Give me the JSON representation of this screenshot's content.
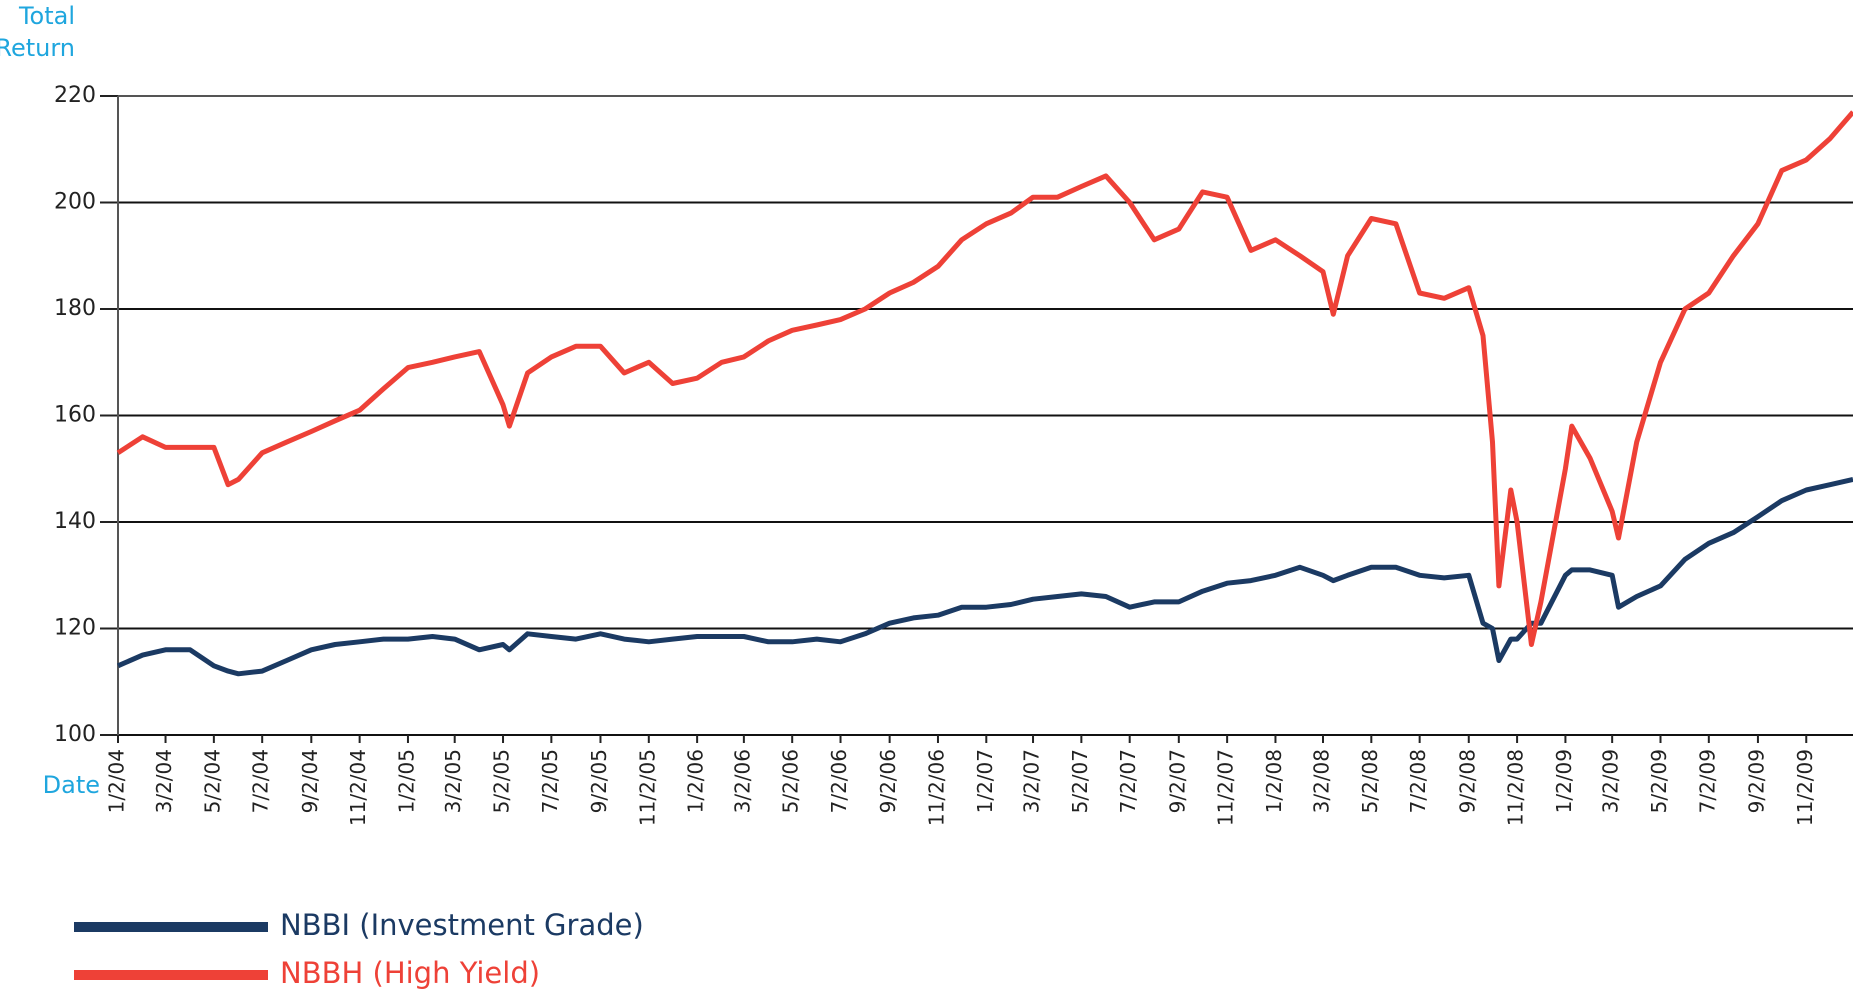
{
  "chart_data": {
    "type": "line",
    "y_axis_label_lines": [
      "Total",
      "Return"
    ],
    "x_axis_label": "Date",
    "x": [
      "2004-01-02",
      "2004-02-02",
      "2004-03-02",
      "2004-04-02",
      "2004-05-02",
      "2004-05-20",
      "2004-06-02",
      "2004-07-02",
      "2004-08-02",
      "2004-09-02",
      "2004-10-02",
      "2004-11-02",
      "2004-12-02",
      "2005-01-02",
      "2005-02-02",
      "2005-03-02",
      "2005-04-02",
      "2005-05-02",
      "2005-05-10",
      "2005-06-02",
      "2005-07-02",
      "2005-08-02",
      "2005-09-02",
      "2005-10-02",
      "2005-11-02",
      "2005-12-02",
      "2006-01-02",
      "2006-02-02",
      "2006-03-02",
      "2006-04-02",
      "2006-05-02",
      "2006-06-02",
      "2006-07-02",
      "2006-08-02",
      "2006-09-02",
      "2006-10-02",
      "2006-11-02",
      "2006-12-02",
      "2007-01-02",
      "2007-02-02",
      "2007-03-02",
      "2007-04-02",
      "2007-05-02",
      "2007-06-02",
      "2007-07-02",
      "2007-08-02",
      "2007-09-02",
      "2007-10-02",
      "2007-11-02",
      "2007-12-02",
      "2008-01-02",
      "2008-02-02",
      "2008-03-02",
      "2008-03-15",
      "2008-04-02",
      "2008-05-02",
      "2008-06-02",
      "2008-07-02",
      "2008-08-02",
      "2008-09-02",
      "2008-09-20",
      "2008-10-02",
      "2008-10-10",
      "2008-10-25",
      "2008-11-02",
      "2008-11-20",
      "2008-12-02",
      "2009-01-02",
      "2009-01-10",
      "2009-02-02",
      "2009-03-02",
      "2009-03-10",
      "2009-04-02",
      "2009-05-02",
      "2009-06-02",
      "2009-07-02",
      "2009-08-02",
      "2009-09-02",
      "2009-10-02",
      "2009-11-02",
      "2009-12-02",
      "2009-12-31"
    ],
    "series": [
      {
        "name": "NBBI (Investment Grade)",
        "color": "#1b3a63",
        "values": [
          113,
          115,
          116,
          116,
          113,
          112,
          111.5,
          112,
          114,
          116,
          117,
          117.5,
          118,
          118,
          118.5,
          118,
          116,
          117,
          116,
          119,
          118.5,
          118,
          119,
          118,
          117.5,
          118,
          118.5,
          118.5,
          118.5,
          117.5,
          117.5,
          118,
          117.5,
          119,
          121,
          122,
          122.5,
          124,
          124,
          124.5,
          125.5,
          126,
          126.5,
          126,
          124,
          125,
          125,
          127,
          128.5,
          129,
          130,
          131.5,
          130,
          129,
          130,
          131.5,
          131.5,
          130,
          129.5,
          130,
          121,
          120,
          114,
          118,
          118,
          121,
          121,
          130,
          131,
          131,
          130,
          124,
          126,
          128,
          133,
          136,
          138,
          141,
          144,
          146,
          147,
          148
        ]
      },
      {
        "name": "NBBH (High Yield)",
        "color": "#ee4137",
        "values": [
          153,
          156,
          154,
          154,
          154,
          147,
          148,
          153,
          155,
          157,
          159,
          161,
          165,
          169,
          170,
          171,
          172,
          162,
          158,
          168,
          171,
          173,
          173,
          168,
          170,
          166,
          167,
          170,
          171,
          174,
          176,
          177,
          178,
          180,
          183,
          185,
          188,
          193,
          196,
          198,
          201,
          201,
          203,
          205,
          200,
          193,
          195,
          202,
          201,
          191,
          193,
          190,
          187,
          179,
          190,
          197,
          196,
          183,
          182,
          184,
          175,
          155,
          128,
          146,
          140,
          117,
          125,
          150,
          158,
          152,
          142,
          137,
          155,
          170,
          180,
          183,
          190,
          196,
          206,
          208,
          212,
          217
        ]
      }
    ],
    "xlim": [
      "2004-01-02",
      "2009-12-31"
    ],
    "xticks": [
      {
        "value": "2004-01-02",
        "label": "1/2/04"
      },
      {
        "value": "2004-03-02",
        "label": "3/2/04"
      },
      {
        "value": "2004-05-02",
        "label": "5/2/04"
      },
      {
        "value": "2004-07-02",
        "label": "7/2/04"
      },
      {
        "value": "2004-09-02",
        "label": "9/2/04"
      },
      {
        "value": "2004-11-02",
        "label": "11/2/04"
      },
      {
        "value": "2005-01-02",
        "label": "1/2/05"
      },
      {
        "value": "2005-03-02",
        "label": "3/2/05"
      },
      {
        "value": "2005-05-02",
        "label": "5/2/05"
      },
      {
        "value": "2005-07-02",
        "label": "7/2/05"
      },
      {
        "value": "2005-09-02",
        "label": "9/2/05"
      },
      {
        "value": "2005-11-02",
        "label": "11/2/05"
      },
      {
        "value": "2006-01-02",
        "label": "1/2/06"
      },
      {
        "value": "2006-03-02",
        "label": "3/2/06"
      },
      {
        "value": "2006-05-02",
        "label": "5/2/06"
      },
      {
        "value": "2006-07-02",
        "label": "7/2/06"
      },
      {
        "value": "2006-09-02",
        "label": "9/2/06"
      },
      {
        "value": "2006-11-02",
        "label": "11/2/06"
      },
      {
        "value": "2007-01-02",
        "label": "1/2/07"
      },
      {
        "value": "2007-03-02",
        "label": "3/2/07"
      },
      {
        "value": "2007-05-02",
        "label": "5/2/07"
      },
      {
        "value": "2007-07-02",
        "label": "7/2/07"
      },
      {
        "value": "2007-09-02",
        "label": "9/2/07"
      },
      {
        "value": "2007-11-02",
        "label": "11/2/07"
      },
      {
        "value": "2008-01-02",
        "label": "1/2/08"
      },
      {
        "value": "2008-03-02",
        "label": "3/2/08"
      },
      {
        "value": "2008-05-02",
        "label": "5/2/08"
      },
      {
        "value": "2008-07-02",
        "label": "7/2/08"
      },
      {
        "value": "2008-09-02",
        "label": "9/2/08"
      },
      {
        "value": "2008-11-02",
        "label": "11/2/08"
      },
      {
        "value": "2009-01-02",
        "label": "1/2/09"
      },
      {
        "value": "2009-03-02",
        "label": "3/2/09"
      },
      {
        "value": "2009-05-02",
        "label": "5/2/09"
      },
      {
        "value": "2009-07-02",
        "label": "7/2/09"
      },
      {
        "value": "2009-09-02",
        "label": "9/2/09"
      },
      {
        "value": "2009-11-02",
        "label": "11/2/09"
      }
    ],
    "ylim": [
      100,
      220
    ],
    "yticks": [
      100,
      120,
      140,
      160,
      180,
      200,
      220
    ],
    "grid": true,
    "label_color": "#1fa6de"
  }
}
